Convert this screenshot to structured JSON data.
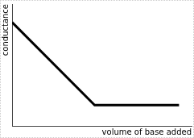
{
  "chart_data": {
    "type": "line",
    "x_label": "volume of base added",
    "y_label": "conductance",
    "x": [
      0,
      4.6,
      9.3
    ],
    "values": [
      8.5,
      1.7,
      1.7
    ],
    "color": "#000000",
    "xlim": [
      0,
      10
    ],
    "ylim": [
      0,
      10
    ],
    "grid": false,
    "tick_labels": false
  }
}
